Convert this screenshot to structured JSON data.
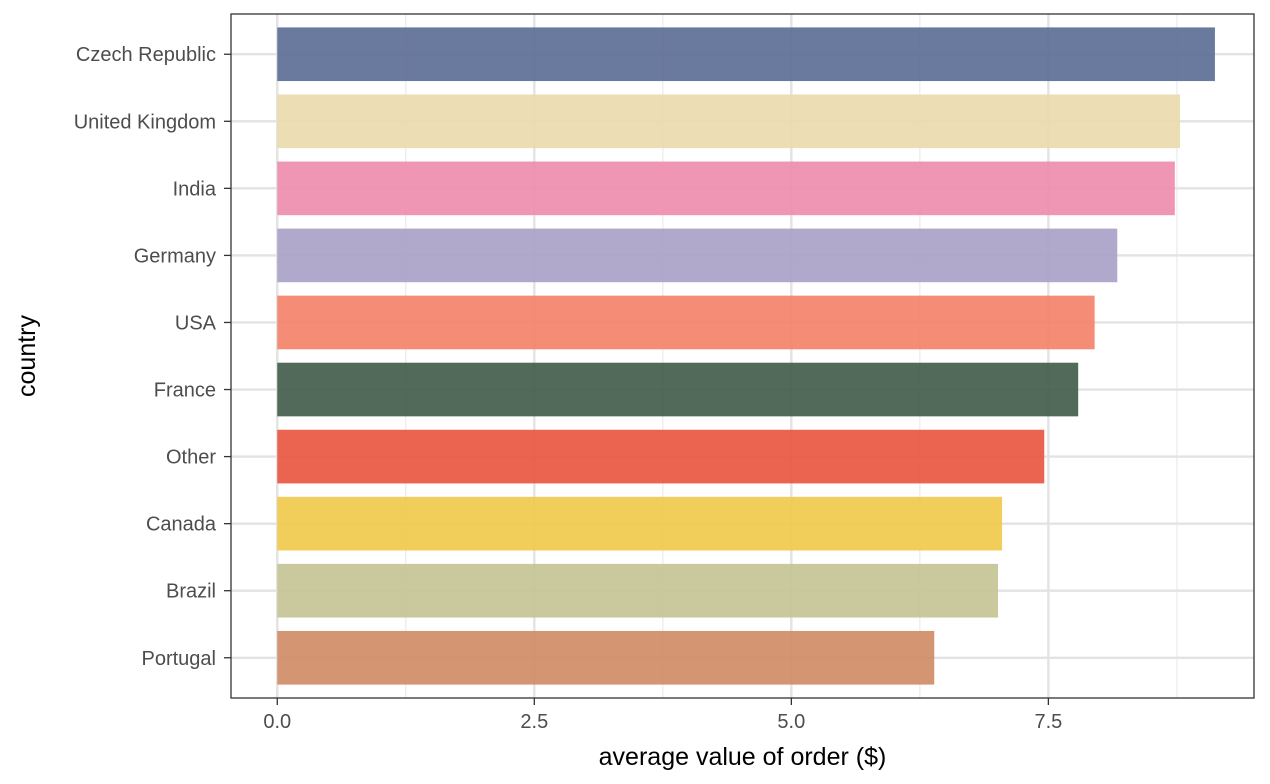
{
  "chart_data": {
    "type": "bar",
    "orientation": "horizontal",
    "title": "",
    "xlabel": "average value of order ($)",
    "ylabel": "country",
    "xlim": [
      -0.45,
      9.5
    ],
    "xticks": [
      0.0,
      2.5,
      5.0,
      7.5
    ],
    "xtick_labels": [
      "0.0",
      "2.5",
      "5.0",
      "7.5"
    ],
    "x_minor_grid": [
      1.25,
      3.75,
      6.25,
      8.75
    ],
    "grid": true,
    "legend": "none",
    "categories": [
      "Czech Republic",
      "United Kingdom",
      "India",
      "Germany",
      "USA",
      "France",
      "Other",
      "Canada",
      "Brazil",
      "Portugal"
    ],
    "values": [
      9.12,
      8.78,
      8.73,
      8.17,
      7.95,
      7.79,
      7.46,
      7.05,
      7.01,
      6.39
    ],
    "colors": [
      "#5a6a93",
      "#ead9ad",
      "#ee8bad",
      "#a9a0c6",
      "#f47f67",
      "#3e5a47",
      "#e8533d",
      "#f0c847",
      "#c4c292",
      "#cf8a64"
    ]
  }
}
